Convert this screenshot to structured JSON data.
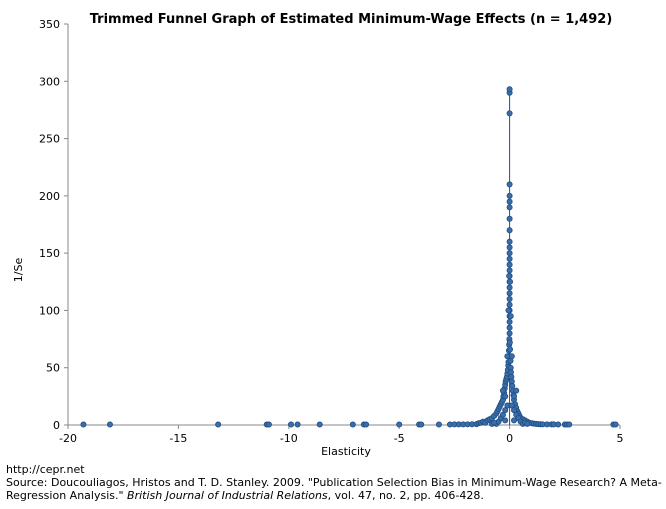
{
  "chart_data": {
    "type": "scatter",
    "title": "Trimmed Funnel Graph of Estimated Minimum-Wage Effects (n = 1,492)",
    "xlabel": "Elasticity",
    "ylabel": "1/Se",
    "xlim": [
      -20,
      5
    ],
    "ylim": [
      0,
      350
    ],
    "xticks": [
      -20,
      -15,
      -10,
      -5,
      0,
      5
    ],
    "yticks": [
      0,
      50,
      100,
      150,
      200,
      250,
      300,
      350
    ],
    "grid": false,
    "legend": "none",
    "marker_color": "#3b6ea8",
    "marker_edge": "#1f4e85",
    "line_color": "#1f4e85",
    "series": [
      {
        "points": [
          [
            -19.3,
            0.4
          ],
          [
            -18.1,
            0.4
          ],
          [
            -13.2,
            0.4
          ],
          [
            -11.0,
            0.4
          ],
          [
            -10.9,
            0.4
          ],
          [
            -9.9,
            0.4
          ],
          [
            -9.6,
            0.4
          ],
          [
            -8.6,
            0.4
          ],
          [
            -7.1,
            0.4
          ],
          [
            -6.6,
            0.4
          ],
          [
            -6.5,
            0.4
          ],
          [
            -5.0,
            0.4
          ],
          [
            -4.1,
            0.4
          ],
          [
            -4.0,
            0.4
          ],
          [
            -3.2,
            0.4
          ],
          [
            -2.7,
            0.4
          ],
          [
            -2.5,
            0.5
          ],
          [
            -2.3,
            0.5
          ],
          [
            -2.1,
            0.5
          ],
          [
            -1.9,
            0.6
          ],
          [
            -1.7,
            0.7
          ],
          [
            -1.5,
            0.8
          ],
          [
            -1.4,
            1.5
          ],
          [
            -1.3,
            2
          ],
          [
            -1.2,
            3
          ],
          [
            -1.1,
            2
          ],
          [
            -1.0,
            4
          ],
          [
            -0.9,
            5
          ],
          [
            -0.8,
            6
          ],
          [
            -0.7,
            8
          ],
          [
            -0.6,
            10
          ],
          [
            -0.55,
            12
          ],
          [
            -0.5,
            14
          ],
          [
            -0.45,
            16
          ],
          [
            -0.4,
            18
          ],
          [
            -0.35,
            20
          ],
          [
            -0.3,
            22
          ],
          [
            -0.28,
            25
          ],
          [
            -0.25,
            28
          ],
          [
            -0.22,
            32
          ],
          [
            -0.2,
            35
          ],
          [
            -0.18,
            38
          ],
          [
            -0.15,
            40
          ],
          [
            -0.12,
            42
          ],
          [
            -0.1,
            45
          ],
          [
            -0.08,
            48
          ],
          [
            -0.06,
            52
          ],
          [
            -0.05,
            55
          ],
          [
            -0.04,
            60
          ],
          [
            -0.03,
            65
          ],
          [
            -0.02,
            70
          ],
          [
            -0.01,
            75
          ],
          [
            0.0,
            80
          ],
          [
            0.0,
            85
          ],
          [
            0.0,
            90
          ],
          [
            0.0,
            95
          ],
          [
            0.0,
            100
          ],
          [
            0.0,
            105
          ],
          [
            0.0,
            110
          ],
          [
            0.0,
            115
          ],
          [
            0.0,
            120
          ],
          [
            0.0,
            125
          ],
          [
            0.0,
            130
          ],
          [
            0.0,
            135
          ],
          [
            0.0,
            140
          ],
          [
            0.0,
            145
          ],
          [
            0.0,
            150
          ],
          [
            0.0,
            155
          ],
          [
            0.0,
            160
          ],
          [
            0.0,
            170
          ],
          [
            0.0,
            180
          ],
          [
            0.0,
            190
          ],
          [
            0.0,
            195
          ],
          [
            0.0,
            200
          ],
          [
            0.0,
            210
          ],
          [
            0.0,
            272
          ],
          [
            0.0,
            290
          ],
          [
            0.0,
            293
          ],
          [
            0.01,
            72
          ],
          [
            0.02,
            66
          ],
          [
            0.03,
            60
          ],
          [
            0.04,
            56
          ],
          [
            0.05,
            50
          ],
          [
            0.06,
            46
          ],
          [
            0.08,
            42
          ],
          [
            0.1,
            38
          ],
          [
            0.12,
            34
          ],
          [
            0.15,
            30
          ],
          [
            0.18,
            26
          ],
          [
            0.2,
            22
          ],
          [
            0.25,
            18
          ],
          [
            0.3,
            15
          ],
          [
            0.35,
            12
          ],
          [
            0.4,
            10
          ],
          [
            0.45,
            8
          ],
          [
            0.5,
            6
          ],
          [
            0.6,
            5
          ],
          [
            0.7,
            4
          ],
          [
            0.8,
            3
          ],
          [
            0.9,
            2
          ],
          [
            1.0,
            1.5
          ],
          [
            1.1,
            1.2
          ],
          [
            1.2,
            1
          ],
          [
            1.3,
            0.8
          ],
          [
            1.4,
            0.7
          ],
          [
            1.5,
            0.6
          ],
          [
            1.7,
            0.5
          ],
          [
            1.9,
            0.5
          ],
          [
            2.0,
            0.5
          ],
          [
            2.2,
            0.4
          ],
          [
            2.5,
            0.4
          ],
          [
            2.6,
            0.4
          ],
          [
            2.7,
            0.4
          ],
          [
            4.7,
            0.4
          ],
          [
            4.8,
            0.4
          ],
          [
            -0.6,
            1
          ],
          [
            -0.5,
            3
          ],
          [
            -0.4,
            6
          ],
          [
            -0.3,
            9
          ],
          [
            -0.2,
            13
          ],
          [
            -0.1,
            17
          ],
          [
            0.1,
            17
          ],
          [
            0.2,
            13
          ],
          [
            0.3,
            9
          ],
          [
            0.4,
            6
          ],
          [
            0.5,
            3
          ],
          [
            0.6,
            1
          ],
          [
            -0.8,
            1
          ],
          [
            -0.7,
            2
          ],
          [
            -0.2,
            4
          ],
          [
            0.2,
            4
          ],
          [
            0.7,
            2
          ],
          [
            0.8,
            1
          ],
          [
            -0.3,
            30
          ],
          [
            -0.2,
            25
          ],
          [
            0.2,
            25
          ],
          [
            0.3,
            30
          ],
          [
            -0.1,
            60
          ],
          [
            0.1,
            60
          ],
          [
            -0.05,
            100
          ],
          [
            0.05,
            95
          ],
          [
            -0.02,
            130
          ],
          [
            0.02,
            125
          ]
        ]
      }
    ]
  },
  "footer": {
    "url": "http://cepr.net",
    "source_prefix": "Source: Doucouliagos, Hristos and T. D. Stanley. 2009. \"Publication Selection Bias in Minimum-Wage Research? A Meta-Regression Analysis.\" ",
    "journal": "British Journal of Industrial Relations",
    "source_suffix": ", vol. 47, no. 2, pp. 406-428."
  }
}
